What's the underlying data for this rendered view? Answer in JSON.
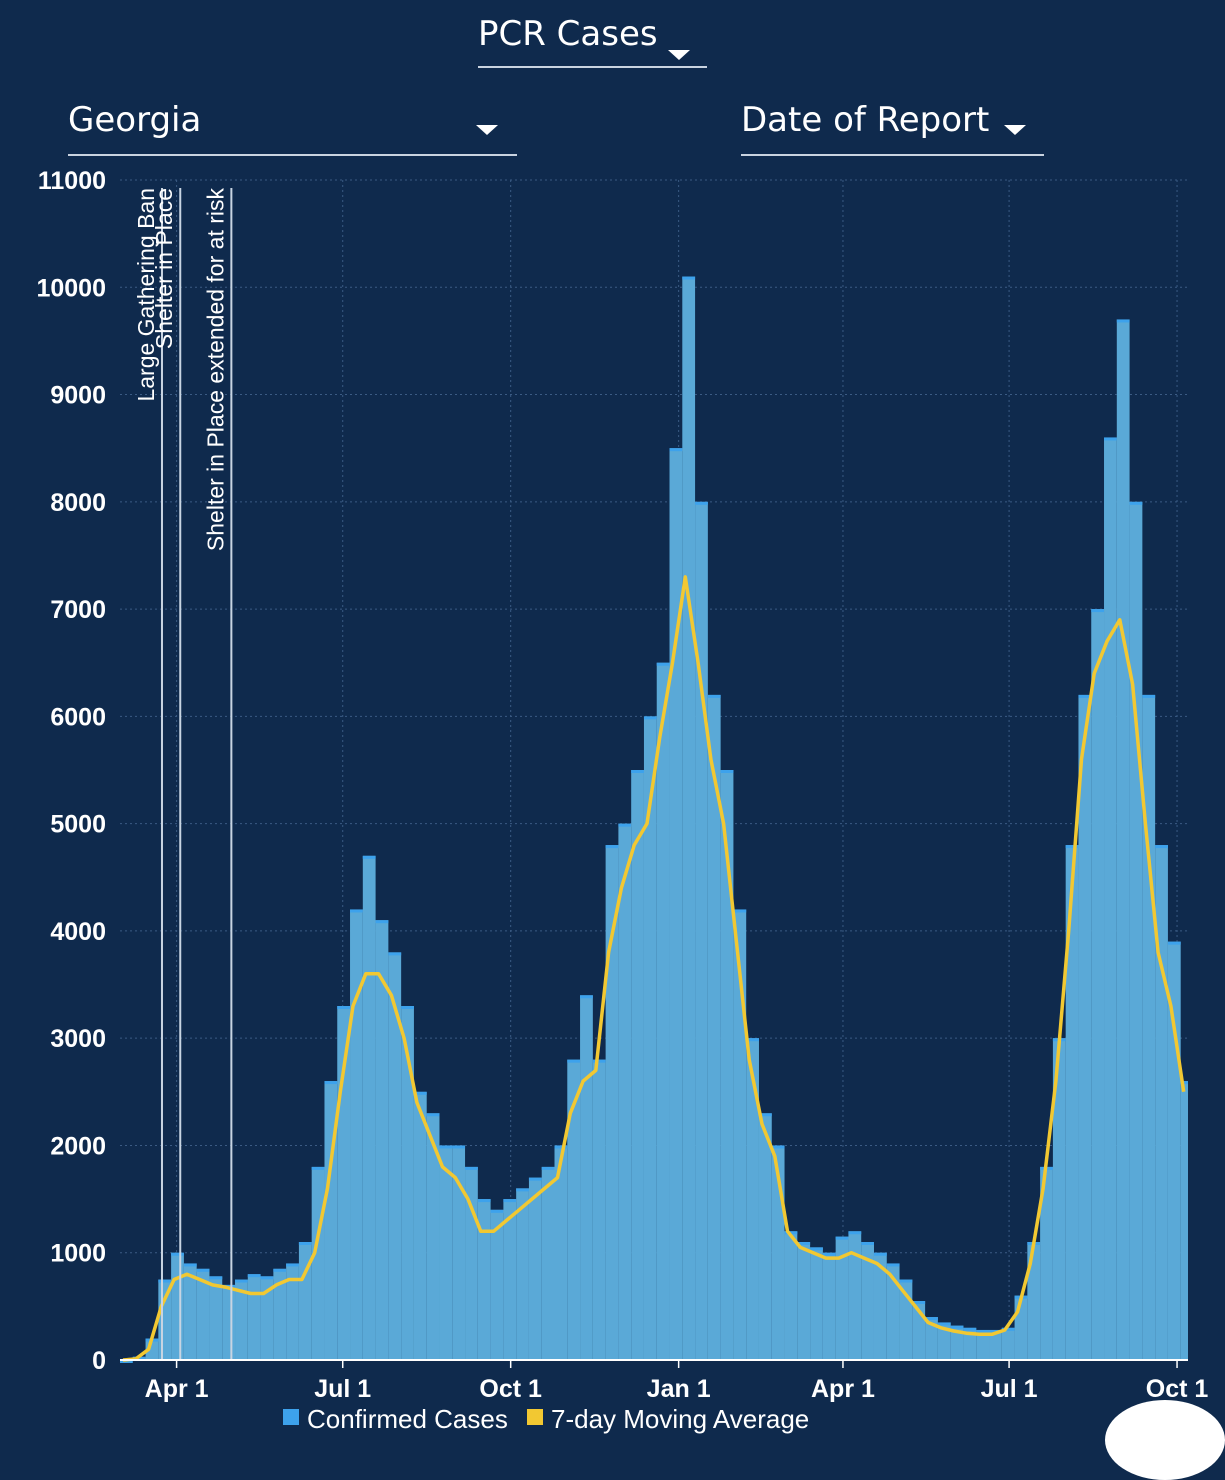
{
  "selectors": {
    "measure": "PCR Cases",
    "region": "Georgia",
    "date_basis": "Date of Report"
  },
  "colors": {
    "background": "#0f2a4d",
    "bars": "#3da2ec",
    "bars_fill": "#5aa9d7",
    "moving_average": "#f2c832",
    "grid": "#3b5b84",
    "event_line": "#c8d4e2"
  },
  "icons": {
    "dropdown": "caret-down-icon"
  },
  "chart_data": {
    "type": "bar",
    "title": "",
    "xlabel": "",
    "ylabel": "",
    "ylim": [
      0,
      11000
    ],
    "x_range": [
      "2020-03-01",
      "2021-10-07"
    ],
    "y_ticks": [
      0,
      1000,
      2000,
      3000,
      4000,
      5000,
      6000,
      7000,
      8000,
      9000,
      10000,
      11000
    ],
    "x_ticks": [
      {
        "label": "Apr 1",
        "date": "2020-04-01"
      },
      {
        "label": "Jul 1",
        "date": "2020-07-01"
      },
      {
        "label": "Oct 1",
        "date": "2020-10-01"
      },
      {
        "label": "Jan 1",
        "date": "2021-01-01"
      },
      {
        "label": "Apr 1",
        "date": "2021-04-01"
      },
      {
        "label": "Jul 1",
        "date": "2021-07-01"
      },
      {
        "label": "Oct 1",
        "date": "2021-10-01"
      }
    ],
    "grid": true,
    "legend": {
      "position": "bottom",
      "entries": [
        {
          "label": "Confirmed Cases",
          "color": "#3da2ec"
        },
        {
          "label": "7-day Moving Average",
          "color": "#f2c832"
        }
      ]
    },
    "events": [
      {
        "label": "Large Gathering Ban",
        "date": "2020-03-24"
      },
      {
        "label": "Shelter in Place",
        "date": "2020-04-03"
      },
      {
        "label": "Shelter in Place extended for at risk",
        "date": "2020-05-01"
      }
    ],
    "series": [
      {
        "name": "Confirmed Cases",
        "kind": "bar",
        "x": [
          "2020-03-01",
          "2020-03-08",
          "2020-03-15",
          "2020-03-22",
          "2020-03-29",
          "2020-04-05",
          "2020-04-12",
          "2020-04-19",
          "2020-04-26",
          "2020-05-03",
          "2020-05-10",
          "2020-05-17",
          "2020-05-24",
          "2020-05-31",
          "2020-06-07",
          "2020-06-14",
          "2020-06-21",
          "2020-06-28",
          "2020-07-05",
          "2020-07-12",
          "2020-07-19",
          "2020-07-26",
          "2020-08-02",
          "2020-08-09",
          "2020-08-16",
          "2020-08-23",
          "2020-08-30",
          "2020-09-06",
          "2020-09-13",
          "2020-09-20",
          "2020-09-27",
          "2020-10-04",
          "2020-10-11",
          "2020-10-18",
          "2020-10-25",
          "2020-11-01",
          "2020-11-08",
          "2020-11-15",
          "2020-11-22",
          "2020-11-29",
          "2020-12-06",
          "2020-12-13",
          "2020-12-20",
          "2020-12-27",
          "2021-01-03",
          "2021-01-10",
          "2021-01-17",
          "2021-01-24",
          "2021-01-31",
          "2021-02-07",
          "2021-02-14",
          "2021-02-21",
          "2021-02-28",
          "2021-03-07",
          "2021-03-14",
          "2021-03-21",
          "2021-03-28",
          "2021-04-04",
          "2021-04-11",
          "2021-04-18",
          "2021-04-25",
          "2021-05-02",
          "2021-05-09",
          "2021-05-16",
          "2021-05-23",
          "2021-05-30",
          "2021-06-06",
          "2021-06-13",
          "2021-06-20",
          "2021-06-27",
          "2021-07-04",
          "2021-07-11",
          "2021-07-18",
          "2021-07-25",
          "2021-08-01",
          "2021-08-08",
          "2021-08-15",
          "2021-08-22",
          "2021-08-29",
          "2021-09-05",
          "2021-09-12",
          "2021-09-19",
          "2021-09-26",
          "2021-10-03"
        ],
        "values": [
          0,
          30,
          200,
          750,
          1000,
          900,
          850,
          780,
          700,
          750,
          800,
          780,
          850,
          900,
          1100,
          1800,
          2600,
          3300,
          4200,
          4700,
          4100,
          3800,
          3300,
          2500,
          2300,
          2000,
          2000,
          1800,
          1500,
          1400,
          1500,
          1600,
          1700,
          1800,
          2000,
          2800,
          3400,
          2800,
          4800,
          5000,
          5500,
          6000,
          6500,
          8500,
          10100,
          8000,
          6200,
          5500,
          4200,
          3000,
          2300,
          2000,
          1200,
          1100,
          1050,
          1000,
          1150,
          1200,
          1100,
          1000,
          900,
          750,
          550,
          400,
          350,
          320,
          300,
          280,
          280,
          300,
          600,
          1100,
          1800,
          3000,
          4800,
          6200,
          7000,
          8600,
          9700,
          8000,
          6200,
          4800,
          3900,
          2600
        ]
      },
      {
        "name": "7-day Moving Average",
        "kind": "line",
        "x": [
          "2020-03-01",
          "2020-03-08",
          "2020-03-15",
          "2020-03-22",
          "2020-03-29",
          "2020-04-05",
          "2020-04-12",
          "2020-04-19",
          "2020-04-26",
          "2020-05-03",
          "2020-05-10",
          "2020-05-17",
          "2020-05-24",
          "2020-05-31",
          "2020-06-07",
          "2020-06-14",
          "2020-06-21",
          "2020-06-28",
          "2020-07-05",
          "2020-07-12",
          "2020-07-19",
          "2020-07-26",
          "2020-08-02",
          "2020-08-09",
          "2020-08-16",
          "2020-08-23",
          "2020-08-30",
          "2020-09-06",
          "2020-09-13",
          "2020-09-20",
          "2020-09-27",
          "2020-10-04",
          "2020-10-11",
          "2020-10-18",
          "2020-10-25",
          "2020-11-01",
          "2020-11-08",
          "2020-11-15",
          "2020-11-22",
          "2020-11-29",
          "2020-12-06",
          "2020-12-13",
          "2020-12-20",
          "2020-12-27",
          "2021-01-03",
          "2021-01-10",
          "2021-01-17",
          "2021-01-24",
          "2021-01-31",
          "2021-02-07",
          "2021-02-14",
          "2021-02-21",
          "2021-02-28",
          "2021-03-07",
          "2021-03-14",
          "2021-03-21",
          "2021-03-28",
          "2021-04-04",
          "2021-04-11",
          "2021-04-18",
          "2021-04-25",
          "2021-05-02",
          "2021-05-09",
          "2021-05-16",
          "2021-05-23",
          "2021-05-30",
          "2021-06-06",
          "2021-06-13",
          "2021-06-20",
          "2021-06-27",
          "2021-07-04",
          "2021-07-11",
          "2021-07-18",
          "2021-07-25",
          "2021-08-01",
          "2021-08-08",
          "2021-08-15",
          "2021-08-22",
          "2021-08-29",
          "2021-09-05",
          "2021-09-12",
          "2021-09-19",
          "2021-09-26",
          "2021-10-03"
        ],
        "values": [
          0,
          10,
          100,
          500,
          750,
          800,
          750,
          700,
          680,
          650,
          620,
          620,
          700,
          750,
          750,
          1000,
          1600,
          2500,
          3300,
          3600,
          3600,
          3400,
          3000,
          2400,
          2100,
          1800,
          1700,
          1500,
          1200,
          1200,
          1300,
          1400,
          1500,
          1600,
          1700,
          2300,
          2600,
          2700,
          3800,
          4400,
          4800,
          5000,
          5800,
          6500,
          7300,
          6500,
          5600,
          5000,
          3900,
          2800,
          2200,
          1900,
          1200,
          1050,
          1000,
          950,
          950,
          1000,
          950,
          900,
          800,
          650,
          500,
          350,
          300,
          270,
          250,
          240,
          240,
          280,
          450,
          900,
          1600,
          2600,
          4000,
          5600,
          6400,
          6700,
          6900,
          6300,
          5000,
          3800,
          3300,
          2500
        ]
      }
    ]
  }
}
